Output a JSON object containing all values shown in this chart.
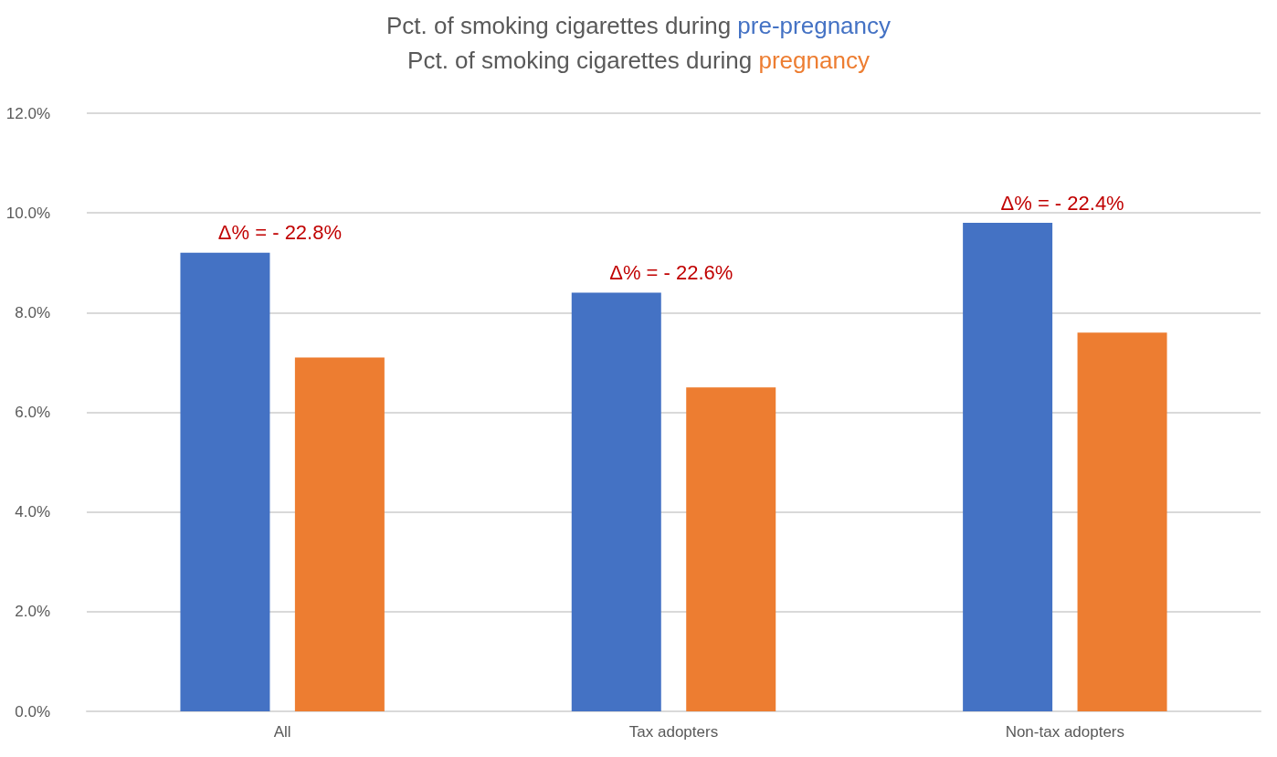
{
  "chart_data": {
    "type": "bar",
    "title": "Pct. of smoking cigarettes during pre-pregnancy\nPct. of smoking cigarettes during pregnancy",
    "categories": [
      "All",
      "Tax adopters",
      "Non-tax adopters"
    ],
    "series": [
      {
        "color": "#4472c4",
        "values": [
          9.2,
          8.4,
          9.8
        ]
      },
      {
        "color": "#ed7d31",
        "values": [
          7.1,
          6.5,
          7.6
        ]
      }
    ],
    "ylim": [
      0,
      12
    ],
    "yticks": [
      {
        "value": 0,
        "label": "0.0%"
      },
      {
        "value": 2,
        "label": "2.0%"
      },
      {
        "value": 4,
        "label": "4.0%"
      },
      {
        "value": 6,
        "label": "6.0%"
      },
      {
        "value": 8,
        "label": "8.0%"
      },
      {
        "value": 10,
        "label": "10.0%"
      },
      {
        "value": 12,
        "label": "12.0%"
      }
    ],
    "annotations": [
      "Δ% = - 22.8%",
      "Δ% = - 22.6%",
      "Δ% = - 22.4%"
    ],
    "grid": "y"
  }
}
